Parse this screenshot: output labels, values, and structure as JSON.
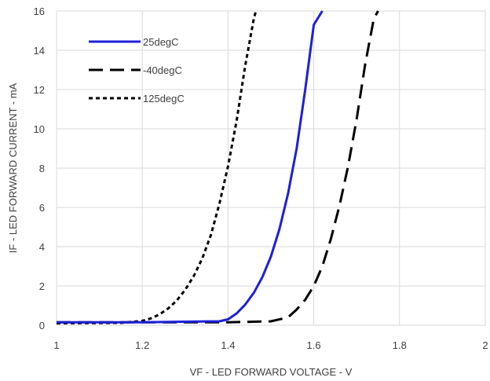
{
  "chart_data": {
    "type": "line",
    "title": "",
    "xlabel": "VF - LED FORWARD VOLTAGE - V",
    "ylabel": "IF - LED FORWARD CURRENT - mA",
    "xlim": [
      1,
      2
    ],
    "ylim": [
      0,
      16
    ],
    "xticks": [
      1,
      1.2,
      1.4,
      1.6,
      1.8,
      2
    ],
    "xtick_labels": [
      "1",
      "1.2",
      "1.4",
      "1.6",
      "1.8",
      "2"
    ],
    "yticks": [
      0,
      2,
      4,
      6,
      8,
      10,
      12,
      14,
      16
    ],
    "ytick_labels": [
      "0",
      "2",
      "4",
      "6",
      "8",
      "10",
      "12",
      "14",
      "16"
    ],
    "grid": true,
    "legend_position": "top-left",
    "series": [
      {
        "name": "25degC",
        "color": "#1f1fd8",
        "dash": "solid",
        "x": [
          1.0,
          1.1,
          1.2,
          1.3,
          1.38,
          1.4,
          1.42,
          1.44,
          1.46,
          1.48,
          1.5,
          1.52,
          1.54,
          1.56,
          1.58,
          1.6,
          1.62
        ],
        "y": [
          0.15,
          0.15,
          0.15,
          0.18,
          0.2,
          0.3,
          0.6,
          1.05,
          1.65,
          2.45,
          3.5,
          4.9,
          6.7,
          9.0,
          12.0,
          15.3,
          16.0
        ]
      },
      {
        "name": "-40degC",
        "color": "#000000",
        "dash": "long-dash",
        "x": [
          1.0,
          1.2,
          1.4,
          1.5,
          1.54,
          1.56,
          1.58,
          1.6,
          1.62,
          1.64,
          1.66,
          1.68,
          1.7,
          1.72,
          1.74,
          1.75
        ],
        "y": [
          0.15,
          0.15,
          0.15,
          0.2,
          0.4,
          0.8,
          1.3,
          2.0,
          3.0,
          4.4,
          6.1,
          8.1,
          10.5,
          13.3,
          15.6,
          16.0
        ]
      },
      {
        "name": "125degC",
        "color": "#000000",
        "dash": "short-dash",
        "x": [
          1.0,
          1.15,
          1.2,
          1.22,
          1.24,
          1.26,
          1.28,
          1.3,
          1.32,
          1.34,
          1.36,
          1.38,
          1.4,
          1.42,
          1.44,
          1.46,
          1.465
        ],
        "y": [
          0.1,
          0.12,
          0.22,
          0.35,
          0.55,
          0.85,
          1.25,
          1.8,
          2.5,
          3.4,
          4.6,
          6.2,
          8.1,
          10.4,
          13.2,
          15.6,
          16.0
        ]
      }
    ]
  }
}
